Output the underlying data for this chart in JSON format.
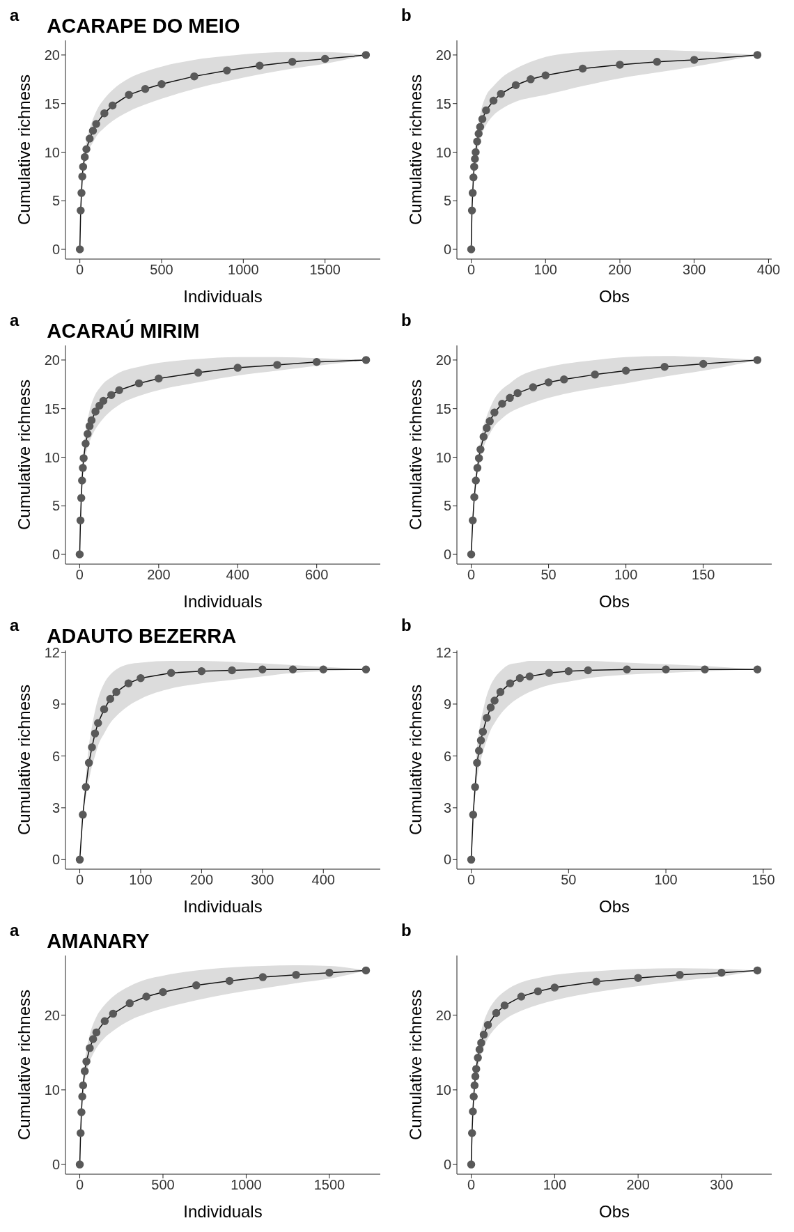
{
  "chart_data": [
    {
      "type": "line",
      "title": "ACARAPE DO MEIO",
      "annotations": [
        "a"
      ],
      "xlabel": "Individuals",
      "ylabel": "Cumulative richness",
      "xlim": [
        -88,
        1838
      ],
      "xticks": [
        0,
        500,
        1000,
        1500
      ],
      "ylim": [
        -1,
        21.5
      ],
      "yticks": [
        0,
        5,
        10,
        15,
        20
      ],
      "marker": "circle",
      "x": [
        0,
        5,
        10,
        15,
        20,
        30,
        40,
        60,
        80,
        100,
        150,
        200,
        300,
        400,
        500,
        700,
        900,
        1100,
        1300,
        1500,
        1750
      ],
      "series": [
        {
          "color": "#595959",
          "values": [
            0,
            4,
            5.8,
            7.5,
            8.5,
            9.5,
            10.3,
            11.4,
            12.2,
            12.9,
            14.0,
            14.8,
            15.9,
            16.5,
            17.0,
            17.8,
            18.4,
            18.9,
            19.3,
            19.6,
            20
          ],
          "lower": [
            0,
            4,
            5.5,
            7,
            8,
            8.8,
            9.5,
            10.4,
            11,
            11.6,
            12.5,
            13.2,
            14.2,
            14.9,
            15.5,
            16.5,
            17.3,
            18,
            18.6,
            19.1,
            20
          ],
          "upper": [
            0,
            4,
            6.1,
            8,
            9,
            10.2,
            11.1,
            12.4,
            13.4,
            14.2,
            15.5,
            16.4,
            17.6,
            18.3,
            18.8,
            19.5,
            19.9,
            20.2,
            20.3,
            20.3,
            20
          ]
        }
      ]
    },
    {
      "type": "line",
      "annotations": [
        "b"
      ],
      "xlabel": "Obs",
      "ylabel": "Cumulative richness",
      "xlim": [
        -19.25,
        404.25
      ],
      "xticks": [
        0,
        100,
        200,
        300,
        400
      ],
      "ylim": [
        -1,
        21.5
      ],
      "yticks": [
        0,
        5,
        10,
        15,
        20
      ],
      "marker": "circle",
      "x": [
        0,
        1,
        2,
        3,
        4,
        5,
        6,
        8,
        10,
        12,
        15,
        20,
        30,
        40,
        60,
        80,
        100,
        150,
        200,
        250,
        300,
        385
      ],
      "series": [
        {
          "color": "#595959",
          "values": [
            0,
            4,
            5.8,
            7.4,
            8.5,
            9.3,
            10,
            11.1,
            11.9,
            12.6,
            13.4,
            14.3,
            15.3,
            16,
            16.9,
            17.5,
            17.9,
            18.6,
            19,
            19.3,
            19.5,
            20
          ],
          "lower": [
            0,
            4,
            5.5,
            6.9,
            7.8,
            8.5,
            9.1,
            10,
            10.7,
            11.3,
            12,
            12.8,
            13.8,
            14.4,
            15.2,
            15.6,
            15.9,
            16.8,
            17.6,
            18.2,
            18.8,
            20
          ],
          "upper": [
            0,
            4,
            6.1,
            7.9,
            9.2,
            10.1,
            10.9,
            12.2,
            13.1,
            13.9,
            14.8,
            15.8,
            16.8,
            17.6,
            18.6,
            19.3,
            19.8,
            20.3,
            20.5,
            20.5,
            20.4,
            20
          ]
        }
      ]
    },
    {
      "type": "line",
      "title": "ACARAÚ MIRIM",
      "annotations": [
        "a"
      ],
      "xlabel": "Individuals",
      "ylabel": "Cumulative richness",
      "xlim": [
        -36,
        761
      ],
      "xticks": [
        0,
        200,
        400,
        600
      ],
      "ylim": [
        -1,
        21.5
      ],
      "yticks": [
        0,
        5,
        10,
        15,
        20
      ],
      "marker": "circle",
      "x": [
        0,
        2,
        4,
        6,
        8,
        10,
        15,
        20,
        25,
        30,
        40,
        50,
        60,
        80,
        100,
        150,
        200,
        300,
        400,
        500,
        600,
        725
      ],
      "series": [
        {
          "color": "#595959",
          "values": [
            0,
            3.5,
            5.8,
            7.6,
            8.9,
            9.9,
            11.4,
            12.4,
            13.2,
            13.8,
            14.7,
            15.3,
            15.8,
            16.4,
            16.9,
            17.6,
            18.1,
            18.7,
            19.2,
            19.5,
            19.8,
            20
          ],
          "lower": [
            0,
            3.5,
            5.4,
            7,
            8.1,
            9,
            10.2,
            11,
            11.6,
            12.1,
            12.9,
            13.5,
            14,
            14.8,
            15.4,
            16.3,
            16.9,
            17.7,
            18.4,
            18.9,
            19.4,
            20
          ],
          "upper": [
            0,
            3.5,
            6.2,
            8.2,
            9.7,
            10.8,
            12.6,
            13.8,
            14.8,
            15.5,
            16.5,
            17.1,
            17.6,
            18.2,
            18.7,
            19.3,
            19.7,
            20.1,
            20.3,
            20.3,
            20.2,
            20
          ]
        }
      ]
    },
    {
      "type": "line",
      "annotations": [
        "b"
      ],
      "xlabel": "Obs",
      "ylabel": "Cumulative richness",
      "xlim": [
        -9.25,
        194.25
      ],
      "xticks": [
        0,
        50,
        100,
        150
      ],
      "ylim": [
        -1,
        21.5
      ],
      "yticks": [
        0,
        5,
        10,
        15,
        20
      ],
      "marker": "circle",
      "x": [
        0,
        1,
        2,
        3,
        4,
        5,
        6,
        8,
        10,
        12,
        15,
        20,
        25,
        30,
        40,
        50,
        60,
        80,
        100,
        125,
        150,
        185
      ],
      "series": [
        {
          "color": "#595959",
          "values": [
            0,
            3.5,
            5.9,
            7.6,
            8.9,
            9.9,
            10.8,
            12.1,
            13,
            13.7,
            14.6,
            15.5,
            16.1,
            16.6,
            17.2,
            17.7,
            18,
            18.5,
            18.9,
            19.3,
            19.6,
            20
          ],
          "lower": [
            0,
            3.5,
            5.4,
            7,
            8.2,
            9,
            9.8,
            11,
            11.8,
            12.4,
            13.2,
            14,
            14.6,
            15,
            15.6,
            16.1,
            16.5,
            17.1,
            17.6,
            18.3,
            18.9,
            20
          ],
          "upper": [
            0,
            3.5,
            6.4,
            8.2,
            9.6,
            10.8,
            11.8,
            13.2,
            14.2,
            15,
            16,
            17,
            17.6,
            18.2,
            18.9,
            19.3,
            19.6,
            20,
            20.3,
            20.4,
            20.3,
            20
          ]
        }
      ]
    },
    {
      "type": "line",
      "title": "ADAUTO BEZERRA",
      "annotations": [
        "a"
      ],
      "xlabel": "Individuals",
      "ylabel": "Cumulative richness",
      "xlim": [
        -23.5,
        493.5
      ],
      "xticks": [
        0,
        100,
        200,
        300,
        400
      ],
      "ylim": [
        -0.55,
        12.1
      ],
      "yticks": [
        0,
        3,
        6,
        9,
        12
      ],
      "marker": "circle",
      "x": [
        0,
        5,
        10,
        15,
        20,
        25,
        30,
        40,
        50,
        60,
        80,
        100,
        150,
        200,
        250,
        300,
        350,
        400,
        470
      ],
      "series": [
        {
          "color": "#595959",
          "values": [
            0,
            2.6,
            4.2,
            5.6,
            6.5,
            7.3,
            7.9,
            8.7,
            9.3,
            9.7,
            10.2,
            10.5,
            10.8,
            10.9,
            10.95,
            11,
            11,
            11,
            11
          ],
          "lower": [
            0,
            2.6,
            3.6,
            4.6,
            5.4,
            6,
            6.6,
            7.3,
            7.9,
            8.3,
            8.9,
            9.3,
            9.9,
            10.2,
            10.4,
            10.6,
            10.8,
            10.9,
            11
          ],
          "upper": [
            0,
            2.6,
            4.8,
            6.6,
            7.7,
            8.6,
            9.3,
            10.2,
            10.7,
            11,
            11.3,
            11.4,
            11.5,
            11.5,
            11.45,
            11.35,
            11.25,
            11.15,
            11
          ]
        }
      ]
    },
    {
      "type": "line",
      "annotations": [
        "b"
      ],
      "xlabel": "Obs",
      "ylabel": "Cumulative richness",
      "xlim": [
        -7.35,
        154.35
      ],
      "xticks": [
        0,
        50,
        100,
        150
      ],
      "ylim": [
        -0.55,
        12.1
      ],
      "yticks": [
        0,
        3,
        6,
        9,
        12
      ],
      "marker": "circle",
      "x": [
        0,
        1,
        2,
        3,
        4,
        5,
        6,
        8,
        10,
        12,
        15,
        20,
        25,
        30,
        40,
        50,
        60,
        80,
        100,
        120,
        147
      ],
      "series": [
        {
          "color": "#595959",
          "values": [
            0,
            2.6,
            4.2,
            5.6,
            6.3,
            6.9,
            7.4,
            8.2,
            8.8,
            9.2,
            9.7,
            10.2,
            10.5,
            10.6,
            10.8,
            10.9,
            10.95,
            11,
            11,
            11,
            11
          ],
          "lower": [
            0,
            2.6,
            3.6,
            4.7,
            5.3,
            5.8,
            6.2,
            6.9,
            7.5,
            7.9,
            8.4,
            9,
            9.4,
            9.7,
            10.1,
            10.3,
            10.5,
            10.7,
            10.8,
            10.9,
            11
          ],
          "upper": [
            0,
            2.6,
            4.8,
            6.5,
            7.4,
            8.1,
            8.6,
            9.5,
            10.1,
            10.5,
            10.9,
            11.3,
            11.4,
            11.5,
            11.5,
            11.5,
            11.5,
            11.4,
            11.3,
            11.2,
            11
          ]
        }
      ]
    },
    {
      "type": "line",
      "title": "AMANARY",
      "annotations": [
        "a"
      ],
      "xlabel": "Individuals",
      "ylabel": "Cumulative richness",
      "xlim": [
        -86,
        1806
      ],
      "xticks": [
        0,
        500,
        1000,
        1500
      ],
      "ylim": [
        -1.3,
        28
      ],
      "yticks": [
        0,
        10,
        20
      ],
      "marker": "circle",
      "x": [
        0,
        5,
        10,
        15,
        20,
        30,
        40,
        60,
        80,
        100,
        150,
        200,
        300,
        400,
        500,
        700,
        900,
        1100,
        1300,
        1500,
        1720
      ],
      "series": [
        {
          "color": "#595959",
          "values": [
            0,
            4.2,
            7,
            9.1,
            10.6,
            12.5,
            13.8,
            15.6,
            16.8,
            17.7,
            19.2,
            20.2,
            21.6,
            22.5,
            23.1,
            24,
            24.6,
            25.1,
            25.4,
            25.7,
            26
          ],
          "lower": [
            0,
            4.2,
            6.5,
            8.3,
            9.6,
            11.2,
            12.3,
            13.8,
            14.8,
            15.6,
            17,
            17.9,
            19.3,
            20.2,
            20.9,
            22,
            22.9,
            23.6,
            24.3,
            24.9,
            26
          ],
          "upper": [
            0,
            4.2,
            7.5,
            9.9,
            11.6,
            13.8,
            15.3,
            17.4,
            18.8,
            19.8,
            21.4,
            22.5,
            23.9,
            24.8,
            25.3,
            26,
            26.4,
            26.6,
            26.7,
            26.6,
            26
          ]
        }
      ]
    },
    {
      "type": "line",
      "annotations": [
        "b"
      ],
      "xlabel": "Obs",
      "ylabel": "Cumulative richness",
      "xlim": [
        -17.15,
        360.15
      ],
      "xticks": [
        0,
        100,
        200,
        300
      ],
      "ylim": [
        -1.3,
        28
      ],
      "yticks": [
        0,
        10,
        20
      ],
      "marker": "circle",
      "x": [
        0,
        1,
        2,
        3,
        4,
        5,
        6,
        8,
        10,
        12,
        15,
        20,
        30,
        40,
        60,
        80,
        100,
        150,
        200,
        250,
        300,
        343
      ],
      "series": [
        {
          "color": "#595959",
          "values": [
            0,
            4.2,
            7.1,
            9.1,
            10.6,
            11.8,
            12.8,
            14.3,
            15.4,
            16.3,
            17.4,
            18.7,
            20.3,
            21.3,
            22.5,
            23.2,
            23.7,
            24.5,
            25,
            25.4,
            25.7,
            26
          ],
          "lower": [
            0,
            4.2,
            6.6,
            8.4,
            9.7,
            10.7,
            11.6,
            12.9,
            13.9,
            14.7,
            15.7,
            16.9,
            18.4,
            19.4,
            20.6,
            21.4,
            22,
            23.1,
            23.9,
            24.6,
            25.2,
            26
          ],
          "upper": [
            0,
            4.2,
            7.6,
            9.8,
            11.5,
            12.9,
            14,
            15.7,
            16.9,
            17.9,
            19.1,
            20.5,
            22.2,
            23.2,
            24.4,
            25,
            25.4,
            25.9,
            26.2,
            26.3,
            26.2,
            26
          ]
        }
      ]
    }
  ]
}
